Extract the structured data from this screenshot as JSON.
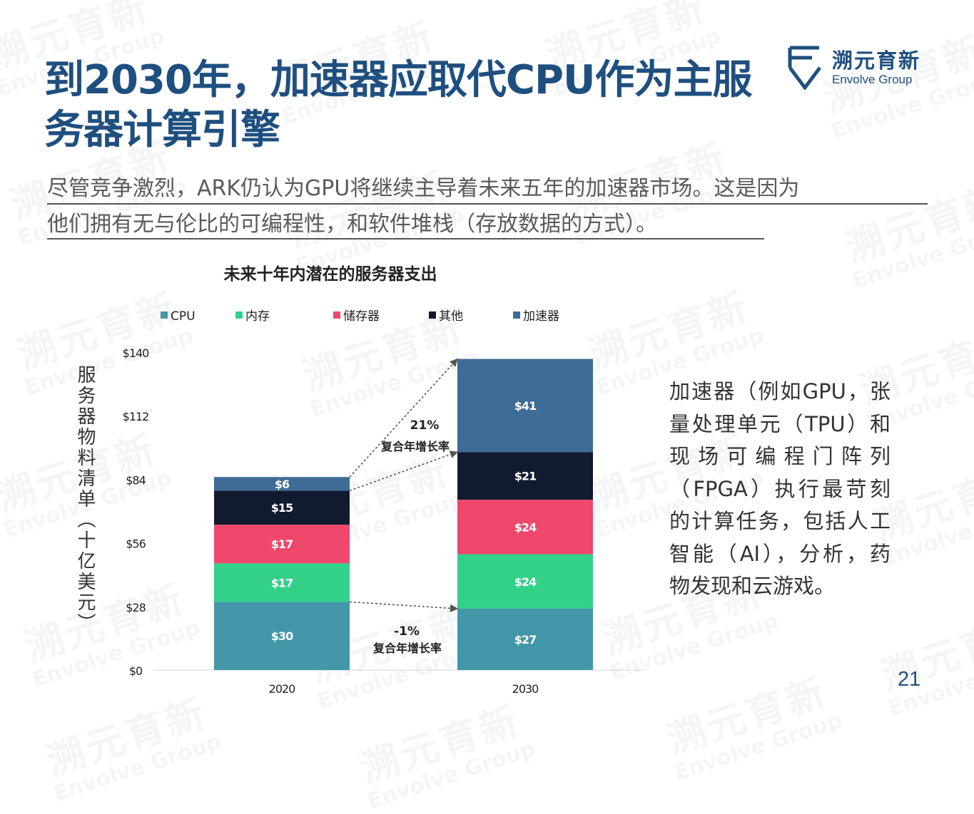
{
  "slide": {
    "title": "到2030年，加速器应取代CPU作为主服务器计算引擎",
    "intro": [
      "尽管竞争激烈，ARK仍认为GPU将继续主导着未来五年的加速器市场。这是因为",
      "他们拥有无与伦比的可编程性，和软件堆栈（存放数据的方式）。"
    ],
    "side_text": [
      "加速器（例如GPU，张",
      "量处理单元（TPU）和",
      "现场可编程门阵列",
      "（FPGA）执行最苛刻",
      "的计算任务，包括人工",
      "智能（AI），分析，药",
      "物发现和云游戏。"
    ],
    "page_number": "21"
  },
  "logo": {
    "cn": "溯元育新",
    "en": "Envolve Group",
    "icon": "envolve-logo-icon"
  },
  "watermark": {
    "cn": "溯元育新",
    "en": "Envolve Group"
  },
  "colors": {
    "title": "#1f4f7f",
    "cpu": "#4397a9",
    "memory": "#33d08a",
    "storage": "#f0476c",
    "other": "#121a30",
    "accelerator": "#3e6c96"
  },
  "chart_data": {
    "type": "bar",
    "stacked": true,
    "title": "未来十年内潜在的服务器支出",
    "ylabel": "服务器物料清单（十亿美元）",
    "xlabel": "",
    "categories": [
      "2020",
      "2030"
    ],
    "ylim": [
      0,
      140
    ],
    "yticks": [
      0,
      28,
      56,
      84,
      112,
      140
    ],
    "ytick_labels": [
      "$0",
      "$28",
      "$56",
      "$84",
      "$112",
      "$140"
    ],
    "legend_position": "top",
    "series": [
      {
        "name": "CPU",
        "values": [
          30,
          27
        ],
        "labels": [
          "$30",
          "$27"
        ],
        "color": "#4397a9"
      },
      {
        "name": "内存",
        "values": [
          17,
          24
        ],
        "labels": [
          "$17",
          "$24"
        ],
        "color": "#33d08a"
      },
      {
        "name": "储存器",
        "values": [
          17,
          24
        ],
        "labels": [
          "$17",
          "$24"
        ],
        "color": "#f0476c"
      },
      {
        "name": "其他",
        "values": [
          15,
          21
        ],
        "labels": [
          "$15",
          "$21"
        ],
        "color": "#121a30"
      },
      {
        "name": "加速器",
        "values": [
          6,
          41
        ],
        "labels": [
          "$6",
          "$41"
        ],
        "color": "#3e6c96"
      }
    ],
    "annotations": [
      {
        "series": "加速器",
        "value": "21%",
        "text": "复合年增长率"
      },
      {
        "series": "CPU",
        "value": "-1%",
        "text": "复合年增长率"
      }
    ]
  }
}
